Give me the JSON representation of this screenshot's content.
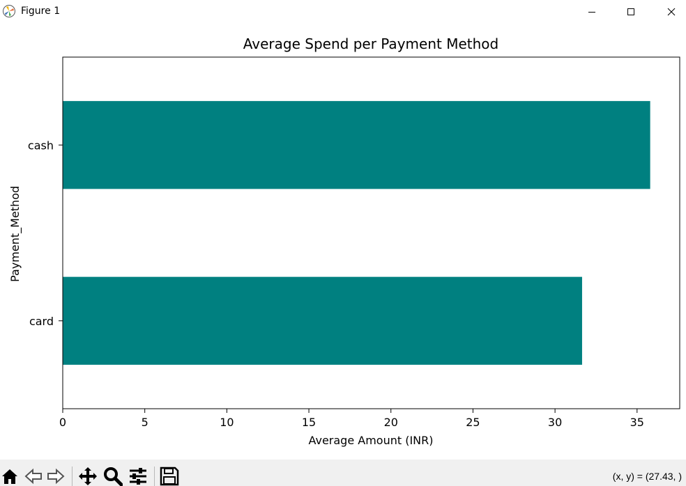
{
  "window": {
    "title": "Figure 1",
    "icon": "matplotlib-icon"
  },
  "toolbar": {
    "buttons": [
      "home-icon",
      "back-icon",
      "forward-icon",
      "pan-icon",
      "zoom-icon",
      "configure-subplots-icon",
      "save-icon"
    ],
    "coords_text": "(x, y) = (27.43, )"
  },
  "chart_data": {
    "type": "bar",
    "orientation": "horizontal",
    "title": "Average Spend per Payment Method",
    "xlabel": "Average Amount (INR)",
    "ylabel": "Payment_Method",
    "categories": [
      "card",
      "cash"
    ],
    "values": [
      31.65,
      35.8
    ],
    "xlim": [
      0,
      37.6
    ],
    "xticks": [
      0,
      5,
      10,
      15,
      20,
      25,
      30,
      35
    ],
    "bar_color": "#008080",
    "grid": false
  }
}
